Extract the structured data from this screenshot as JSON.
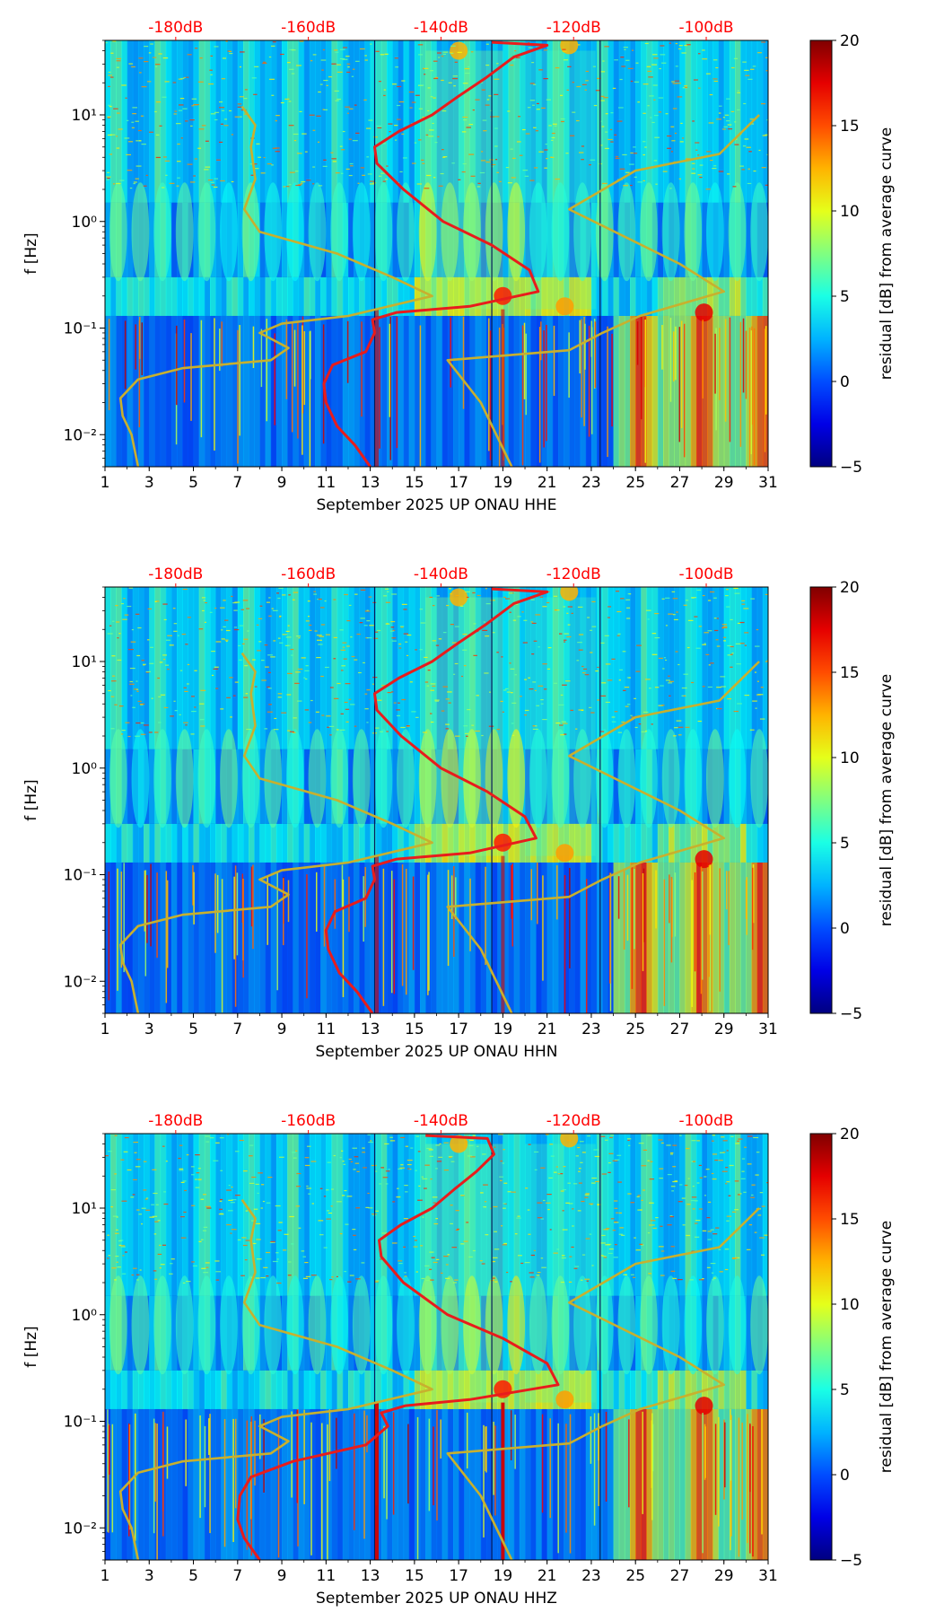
{
  "chart_data": [
    {
      "type": "heatmap",
      "title": "",
      "xlabel": "September 2025 UP ONAU  HHE",
      "ylabel": "f [Hz]",
      "x_ticks": [
        "1",
        "3",
        "5",
        "7",
        "9",
        "11",
        "13",
        "15",
        "17",
        "19",
        "21",
        "23",
        "25",
        "27",
        "29",
        "31"
      ],
      "xlim": [
        1,
        31
      ],
      "y_scale": "log",
      "ylim": [
        0.005,
        50
      ],
      "y_ticks": [
        {
          "value": 0.01,
          "label": "10⁻²"
        },
        {
          "value": 0.1,
          "label": "10⁻¹"
        },
        {
          "value": 1,
          "label": "10⁰"
        },
        {
          "value": 10,
          "label": "10¹"
        }
      ],
      "top_ticks": [
        {
          "day": 4.2,
          "label": "-180dB"
        },
        {
          "day": 10.2,
          "label": "-160dB"
        },
        {
          "day": 16.2,
          "label": "-140dB"
        },
        {
          "day": 22.2,
          "label": "-120dB"
        },
        {
          "day": 28.2,
          "label": "-100dB"
        }
      ],
      "colorbar": {
        "label": "residual [dB] from average curve",
        "range": [
          -5,
          20
        ],
        "ticks": [
          "−5",
          "0",
          "5",
          "10",
          "15",
          "20"
        ]
      },
      "series": [
        {
          "color": "#e81c1c",
          "points": [
            [
              13.0,
              0.005
            ],
            [
              12.3,
              0.008
            ],
            [
              11.5,
              0.012
            ],
            [
              11.0,
              0.02
            ],
            [
              10.9,
              0.03
            ],
            [
              11.3,
              0.045
            ],
            [
              12.8,
              0.06
            ],
            [
              13.2,
              0.09
            ],
            [
              13.1,
              0.12
            ],
            [
              14.2,
              0.14
            ],
            [
              17.5,
              0.16
            ],
            [
              20.6,
              0.22
            ],
            [
              20.2,
              0.35
            ],
            [
              18.5,
              0.6
            ],
            [
              16.3,
              1.0
            ],
            [
              14.5,
              2.0
            ],
            [
              13.3,
              3.5
            ],
            [
              13.2,
              5.0
            ],
            [
              14.3,
              7.0
            ],
            [
              15.8,
              10.0
            ],
            [
              17.0,
              15.0
            ],
            [
              18.2,
              22.0
            ],
            [
              19.5,
              35.0
            ],
            [
              21.0,
              45.0
            ],
            [
              18.5,
              48.0
            ]
          ]
        },
        {
          "color": "#c8b02e",
          "points": [
            [
              2.5,
              0.005
            ],
            [
              2.2,
              0.01
            ],
            [
              1.8,
              0.015
            ],
            [
              1.7,
              0.022
            ],
            [
              2.5,
              0.033
            ],
            [
              4.5,
              0.042
            ],
            [
              8.5,
              0.05
            ],
            [
              9.3,
              0.065
            ],
            [
              8.0,
              0.09
            ],
            [
              9.0,
              0.11
            ],
            [
              12.0,
              0.13
            ],
            [
              15.8,
              0.2
            ],
            [
              14.0,
              0.3
            ],
            [
              11.5,
              0.5
            ],
            [
              8.0,
              0.8
            ],
            [
              7.3,
              1.3
            ],
            [
              7.8,
              2.5
            ],
            [
              7.6,
              5.0
            ],
            [
              7.8,
              8.0
            ],
            [
              7.2,
              12.0
            ]
          ]
        },
        {
          "color": "#c8b02e",
          "points": [
            [
              19.4,
              0.005
            ],
            [
              18.0,
              0.02
            ],
            [
              16.5,
              0.05
            ],
            [
              22.0,
              0.062
            ],
            [
              23.5,
              0.09
            ],
            [
              25.2,
              0.13
            ],
            [
              29.0,
              0.22
            ],
            [
              27.0,
              0.4
            ],
            [
              22.0,
              1.3
            ],
            [
              25.0,
              3.0
            ],
            [
              28.8,
              4.3
            ],
            [
              30.6,
              10.0
            ]
          ]
        }
      ]
    },
    {
      "type": "heatmap",
      "title": "",
      "xlabel": "September 2025 UP ONAU  HHN",
      "ylabel": "f [Hz]",
      "x_ticks": [
        "1",
        "3",
        "5",
        "7",
        "9",
        "11",
        "13",
        "15",
        "17",
        "19",
        "21",
        "23",
        "25",
        "27",
        "29",
        "31"
      ],
      "xlim": [
        1,
        31
      ],
      "y_scale": "log",
      "ylim": [
        0.005,
        50
      ],
      "y_ticks": [
        {
          "value": 0.01,
          "label": "10⁻²"
        },
        {
          "value": 0.1,
          "label": "10⁻¹"
        },
        {
          "value": 1,
          "label": "10⁰"
        },
        {
          "value": 10,
          "label": "10¹"
        }
      ],
      "top_ticks": [
        {
          "day": 4.2,
          "label": "-180dB"
        },
        {
          "day": 10.2,
          "label": "-160dB"
        },
        {
          "day": 16.2,
          "label": "-140dB"
        },
        {
          "day": 22.2,
          "label": "-120dB"
        },
        {
          "day": 28.2,
          "label": "-100dB"
        }
      ],
      "colorbar": {
        "label": "residual [dB] from average curve",
        "range": [
          -5,
          20
        ],
        "ticks": [
          "−5",
          "0",
          "5",
          "10",
          "15",
          "20"
        ]
      },
      "series": [
        {
          "color": "#e81c1c",
          "points": [
            [
              13.1,
              0.005
            ],
            [
              12.4,
              0.008
            ],
            [
              11.6,
              0.012
            ],
            [
              11.1,
              0.02
            ],
            [
              11.0,
              0.03
            ],
            [
              11.4,
              0.045
            ],
            [
              12.8,
              0.06
            ],
            [
              13.2,
              0.09
            ],
            [
              13.1,
              0.12
            ],
            [
              14.2,
              0.14
            ],
            [
              17.5,
              0.16
            ],
            [
              20.5,
              0.22
            ],
            [
              20.0,
              0.35
            ],
            [
              18.3,
              0.6
            ],
            [
              16.2,
              1.0
            ],
            [
              14.4,
              2.0
            ],
            [
              13.3,
              3.5
            ],
            [
              13.2,
              5.0
            ],
            [
              14.3,
              7.0
            ],
            [
              15.8,
              10.0
            ],
            [
              17.0,
              15.0
            ],
            [
              18.2,
              22.0
            ],
            [
              19.5,
              35.0
            ],
            [
              21.0,
              45.0
            ],
            [
              18.5,
              48.0
            ]
          ]
        },
        {
          "color": "#c8b02e",
          "points": [
            [
              2.5,
              0.005
            ],
            [
              2.2,
              0.01
            ],
            [
              1.8,
              0.015
            ],
            [
              1.7,
              0.022
            ],
            [
              2.5,
              0.033
            ],
            [
              4.5,
              0.042
            ],
            [
              8.5,
              0.05
            ],
            [
              9.3,
              0.065
            ],
            [
              8.0,
              0.09
            ],
            [
              9.0,
              0.11
            ],
            [
              12.0,
              0.13
            ],
            [
              15.8,
              0.2
            ],
            [
              14.0,
              0.3
            ],
            [
              11.5,
              0.5
            ],
            [
              8.0,
              0.8
            ],
            [
              7.3,
              1.3
            ],
            [
              7.8,
              2.5
            ],
            [
              7.6,
              5.0
            ],
            [
              7.8,
              8.0
            ],
            [
              7.2,
              12.0
            ]
          ]
        },
        {
          "color": "#c8b02e",
          "points": [
            [
              19.4,
              0.005
            ],
            [
              18.0,
              0.02
            ],
            [
              16.5,
              0.05
            ],
            [
              22.0,
              0.062
            ],
            [
              23.5,
              0.09
            ],
            [
              25.2,
              0.13
            ],
            [
              29.0,
              0.22
            ],
            [
              27.0,
              0.4
            ],
            [
              22.0,
              1.3
            ],
            [
              25.0,
              3.0
            ],
            [
              28.8,
              4.3
            ],
            [
              30.6,
              10.0
            ]
          ]
        }
      ]
    },
    {
      "type": "heatmap",
      "title": "",
      "xlabel": "September 2025 UP ONAU  HHZ",
      "ylabel": "f [Hz]",
      "x_ticks": [
        "1",
        "3",
        "5",
        "7",
        "9",
        "11",
        "13",
        "15",
        "17",
        "19",
        "21",
        "23",
        "25",
        "27",
        "29",
        "31"
      ],
      "xlim": [
        1,
        31
      ],
      "y_scale": "log",
      "ylim": [
        0.005,
        50
      ],
      "y_ticks": [
        {
          "value": 0.01,
          "label": "10⁻²"
        },
        {
          "value": 0.1,
          "label": "10⁻¹"
        },
        {
          "value": 1,
          "label": "10⁰"
        },
        {
          "value": 10,
          "label": "10¹"
        }
      ],
      "top_ticks": [
        {
          "day": 4.2,
          "label": "-180dB"
        },
        {
          "day": 10.2,
          "label": "-160dB"
        },
        {
          "day": 16.2,
          "label": "-140dB"
        },
        {
          "day": 22.2,
          "label": "-120dB"
        },
        {
          "day": 28.2,
          "label": "-100dB"
        }
      ],
      "colorbar": {
        "label": "residual [dB] from average curve",
        "range": [
          -5,
          20
        ],
        "ticks": [
          "−5",
          "0",
          "5",
          "10",
          "15",
          "20"
        ]
      },
      "series": [
        {
          "color": "#e81c1c",
          "points": [
            [
              8.0,
              0.005
            ],
            [
              7.3,
              0.008
            ],
            [
              7.0,
              0.012
            ],
            [
              7.1,
              0.02
            ],
            [
              7.6,
              0.03
            ],
            [
              9.5,
              0.042
            ],
            [
              12.8,
              0.06
            ],
            [
              13.8,
              0.09
            ],
            [
              13.5,
              0.12
            ],
            [
              14.6,
              0.14
            ],
            [
              17.5,
              0.16
            ],
            [
              21.5,
              0.22
            ],
            [
              21.0,
              0.35
            ],
            [
              19.0,
              0.6
            ],
            [
              16.5,
              1.0
            ],
            [
              14.5,
              2.0
            ],
            [
              13.5,
              3.5
            ],
            [
              13.4,
              5.0
            ],
            [
              14.4,
              7.0
            ],
            [
              15.8,
              10.0
            ],
            [
              16.8,
              15.0
            ],
            [
              17.8,
              22.0
            ],
            [
              18.6,
              32.0
            ],
            [
              18.3,
              45.0
            ],
            [
              15.5,
              48.0
            ]
          ]
        },
        {
          "color": "#c8b02e",
          "points": [
            [
              2.5,
              0.005
            ],
            [
              2.2,
              0.01
            ],
            [
              1.8,
              0.015
            ],
            [
              1.7,
              0.022
            ],
            [
              2.5,
              0.033
            ],
            [
              4.5,
              0.042
            ],
            [
              8.5,
              0.05
            ],
            [
              9.3,
              0.065
            ],
            [
              8.0,
              0.09
            ],
            [
              9.0,
              0.11
            ],
            [
              12.0,
              0.13
            ],
            [
              15.8,
              0.2
            ],
            [
              14.0,
              0.3
            ],
            [
              11.5,
              0.5
            ],
            [
              8.0,
              0.8
            ],
            [
              7.3,
              1.3
            ],
            [
              7.8,
              2.5
            ],
            [
              7.6,
              5.0
            ],
            [
              7.8,
              8.0
            ],
            [
              7.2,
              12.0
            ]
          ]
        },
        {
          "color": "#c8b02e",
          "points": [
            [
              19.4,
              0.005
            ],
            [
              18.0,
              0.02
            ],
            [
              16.5,
              0.05
            ],
            [
              22.0,
              0.062
            ],
            [
              23.5,
              0.09
            ],
            [
              25.2,
              0.13
            ],
            [
              29.0,
              0.22
            ],
            [
              27.0,
              0.4
            ],
            [
              22.0,
              1.3
            ],
            [
              25.0,
              3.0
            ],
            [
              28.8,
              4.3
            ],
            [
              30.6,
              10.0
            ]
          ]
        }
      ]
    }
  ]
}
